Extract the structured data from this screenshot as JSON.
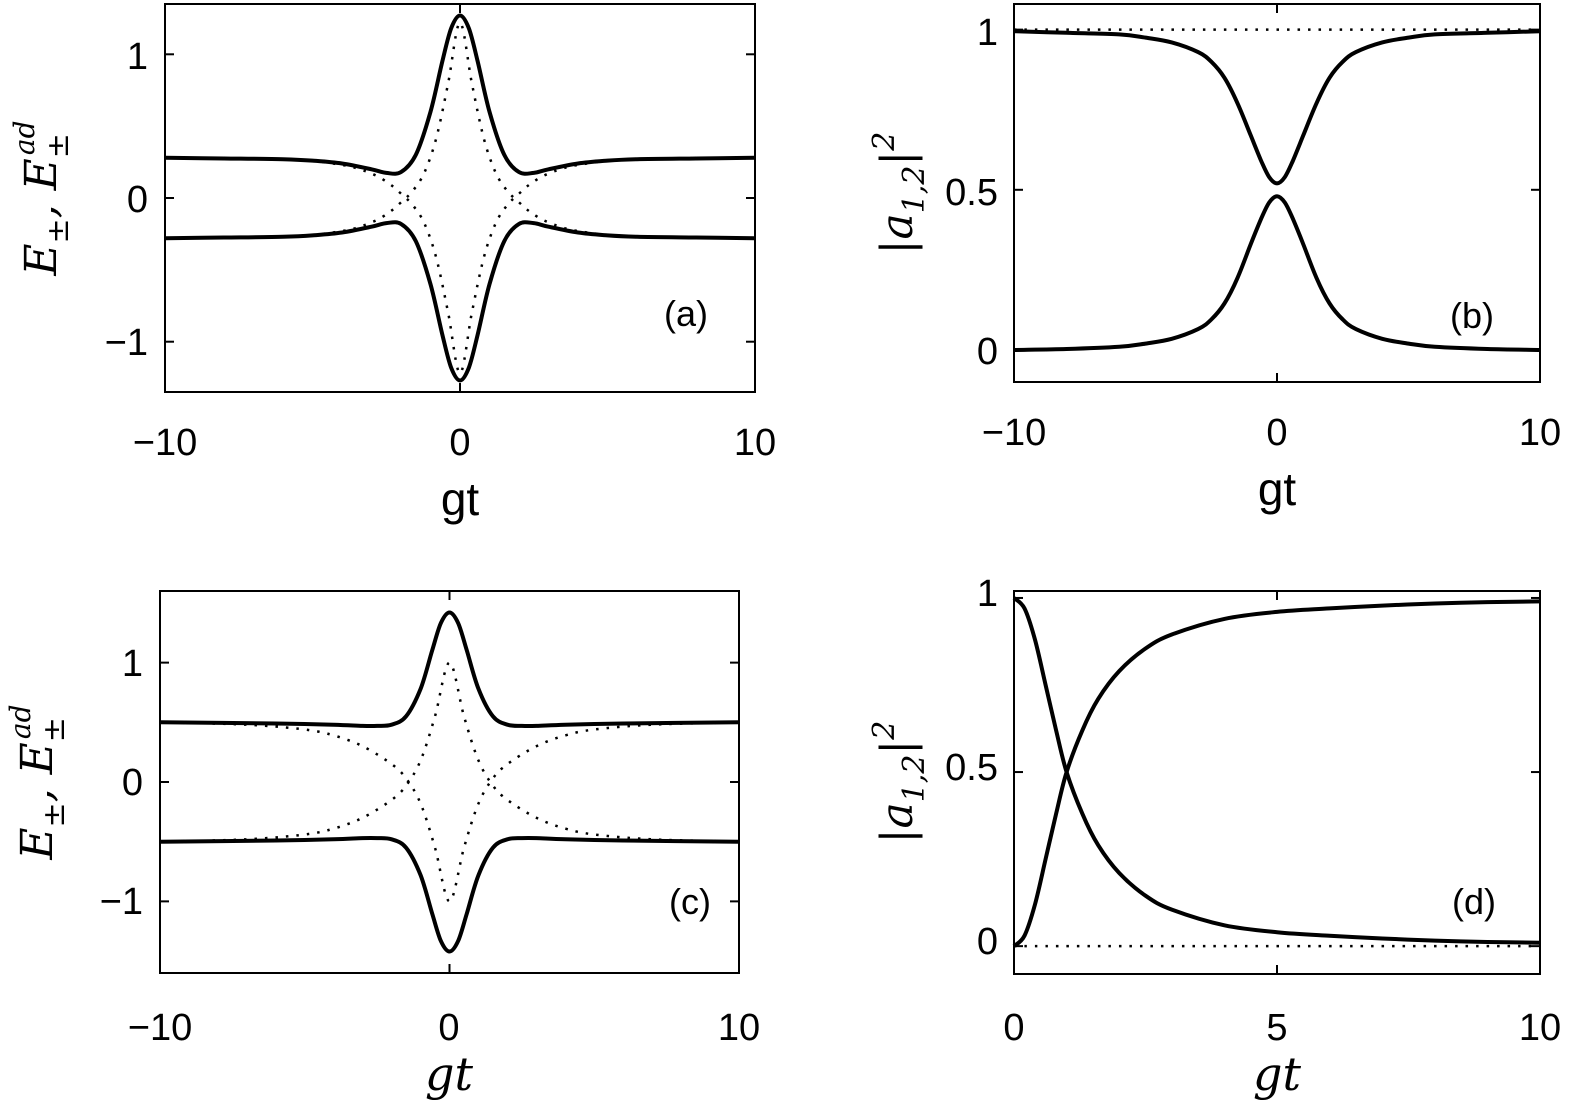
{
  "chart_data": [
    {
      "id": "a",
      "type": "line",
      "panel_label": "(a)",
      "xlabel": "gt",
      "ylabel": "E±, E±^ad",
      "xlim": [
        -10,
        10
      ],
      "ylim": [
        -1.35,
        1.35
      ],
      "xticks": [
        -10,
        0,
        10
      ],
      "yticks": [
        -1,
        0,
        1
      ],
      "xtick_labels": [
        "−10",
        "0",
        "10"
      ],
      "ytick_labels": [
        "−1",
        "0",
        "1"
      ],
      "x_range": [
        -10,
        10
      ],
      "series": [
        {
          "style": "solid",
          "x": [
            -10,
            -8,
            -6,
            -5,
            -4,
            -3,
            -2.5,
            -2,
            -1.5,
            -1,
            -0.6,
            -0.3,
            0,
            0.3,
            0.6,
            1,
            1.5,
            2,
            2.5,
            3,
            4,
            5,
            6,
            8,
            10
          ],
          "y": [
            0.28,
            0.275,
            0.27,
            0.26,
            0.24,
            0.2,
            0.175,
            0.18,
            0.3,
            0.6,
            0.95,
            1.18,
            1.27,
            1.18,
            0.95,
            0.6,
            0.3,
            0.18,
            0.175,
            0.2,
            0.24,
            0.26,
            0.27,
            0.275,
            0.28
          ]
        },
        {
          "style": "solid",
          "x": [
            -10,
            -8,
            -6,
            -5,
            -4,
            -3,
            -2.5,
            -2,
            -1.5,
            -1,
            -0.6,
            -0.3,
            0,
            0.3,
            0.6,
            1,
            1.5,
            2,
            2.5,
            3,
            4,
            5,
            6,
            8,
            10
          ],
          "y": [
            -0.28,
            -0.275,
            -0.27,
            -0.26,
            -0.24,
            -0.2,
            -0.175,
            -0.18,
            -0.3,
            -0.6,
            -0.95,
            -1.18,
            -1.27,
            -1.18,
            -0.95,
            -0.6,
            -0.3,
            -0.18,
            -0.175,
            -0.2,
            -0.24,
            -0.26,
            -0.27,
            -0.275,
            -0.28
          ]
        },
        {
          "style": "dotted",
          "x": [
            -10,
            -6,
            -4,
            -3,
            -2.4,
            -2,
            -1.6,
            -1.2,
            -0.8,
            -0.4,
            0,
            0.4,
            0.8,
            1.2,
            1.6,
            2,
            2.4,
            3,
            4,
            6,
            10
          ],
          "y": [
            0.28,
            0.27,
            0.23,
            0.17,
            0.1,
            0.03,
            -0.05,
            -0.18,
            -0.42,
            -0.8,
            -1.22,
            -0.8,
            -0.42,
            -0.18,
            -0.05,
            0.03,
            0.1,
            0.17,
            0.23,
            0.27,
            0.28
          ]
        },
        {
          "style": "dotted",
          "x": [
            -10,
            -6,
            -4,
            -3,
            -2.4,
            -2,
            -1.6,
            -1.2,
            -0.8,
            -0.4,
            0,
            0.4,
            0.8,
            1.2,
            1.6,
            2,
            2.4,
            3,
            4,
            6,
            10
          ],
          "y": [
            -0.28,
            -0.27,
            -0.23,
            -0.17,
            -0.1,
            -0.03,
            0.05,
            0.18,
            0.42,
            0.8,
            1.22,
            0.8,
            0.42,
            0.18,
            0.05,
            -0.03,
            -0.1,
            -0.17,
            -0.23,
            -0.27,
            -0.28
          ]
        }
      ]
    },
    {
      "id": "b",
      "type": "line",
      "panel_label": "(b)",
      "xlabel": "gt",
      "ylabel": "|a1,2|^2",
      "xlim": [
        -10,
        10
      ],
      "ylim": [
        -0.1,
        1.08
      ],
      "xticks": [
        -10,
        0,
        10
      ],
      "yticks": [
        0,
        0.5,
        1
      ],
      "xtick_labels": [
        "−10",
        "0",
        "10"
      ],
      "ytick_labels": [
        "0",
        "0.5",
        "1"
      ],
      "series": [
        {
          "style": "solid",
          "x": [
            -10,
            -8,
            -6,
            -5,
            -4,
            -3,
            -2.5,
            -2,
            -1.5,
            -1,
            -0.6,
            -0.3,
            0,
            0.3,
            0.6,
            1,
            1.5,
            2,
            2.5,
            3,
            4,
            5,
            6,
            8,
            10
          ],
          "y": [
            0.995,
            0.99,
            0.985,
            0.975,
            0.96,
            0.93,
            0.9,
            0.85,
            0.77,
            0.67,
            0.59,
            0.54,
            0.52,
            0.54,
            0.59,
            0.67,
            0.77,
            0.85,
            0.9,
            0.93,
            0.96,
            0.975,
            0.985,
            0.99,
            0.995
          ]
        },
        {
          "style": "solid",
          "x": [
            -10,
            -8,
            -6,
            -5,
            -4,
            -3,
            -2.5,
            -2,
            -1.5,
            -1,
            -0.6,
            -0.3,
            0,
            0.3,
            0.6,
            1,
            1.5,
            2,
            2.5,
            3,
            4,
            5,
            6,
            8,
            10
          ],
          "y": [
            0.0,
            0.003,
            0.01,
            0.02,
            0.035,
            0.065,
            0.095,
            0.145,
            0.225,
            0.33,
            0.41,
            0.46,
            0.48,
            0.46,
            0.41,
            0.33,
            0.225,
            0.145,
            0.095,
            0.065,
            0.035,
            0.02,
            0.01,
            0.003,
            0.0
          ]
        },
        {
          "style": "dotted",
          "x": [
            -10,
            10
          ],
          "y": [
            1.0,
            1.0
          ]
        }
      ]
    },
    {
      "id": "c",
      "type": "line",
      "panel_label": "(c)",
      "xlabel": "gt",
      "ylabel": "E±, E±^ad",
      "xlim": [
        -10,
        10
      ],
      "ylim": [
        -1.6,
        1.6
      ],
      "xticks": [
        -10,
        0,
        10
      ],
      "yticks": [
        -1,
        0,
        1
      ],
      "xtick_labels": [
        "−10",
        "0",
        "10"
      ],
      "ytick_labels": [
        "−1",
        "0",
        "1"
      ],
      "series": [
        {
          "style": "solid",
          "x": [
            -10,
            -6,
            -4,
            -3,
            -2.5,
            -2,
            -1.5,
            -1,
            -0.6,
            -0.3,
            0,
            0.3,
            0.6,
            1,
            1.5,
            2,
            2.5,
            3,
            4,
            6,
            10
          ],
          "y": [
            0.5,
            0.49,
            0.48,
            0.47,
            0.47,
            0.48,
            0.55,
            0.78,
            1.1,
            1.33,
            1.42,
            1.33,
            1.1,
            0.78,
            0.55,
            0.48,
            0.47,
            0.47,
            0.48,
            0.49,
            0.5
          ]
        },
        {
          "style": "solid",
          "x": [
            -10,
            -6,
            -4,
            -3,
            -2.5,
            -2,
            -1.5,
            -1,
            -0.6,
            -0.3,
            0,
            0.3,
            0.6,
            1,
            1.5,
            2,
            2.5,
            3,
            4,
            6,
            10
          ],
          "y": [
            -0.5,
            -0.49,
            -0.48,
            -0.47,
            -0.47,
            -0.48,
            -0.55,
            -0.78,
            -1.1,
            -1.33,
            -1.42,
            -1.33,
            -1.1,
            -0.78,
            -0.55,
            -0.48,
            -0.47,
            -0.47,
            -0.48,
            -0.49,
            -0.5
          ]
        },
        {
          "style": "dotted",
          "x": [
            -10,
            -7,
            -5,
            -4,
            -3,
            -2,
            -1.5,
            -1,
            -0.5,
            0,
            0.5,
            1,
            1.5,
            2,
            3,
            4,
            5,
            7,
            10
          ],
          "y": [
            0.5,
            0.48,
            0.44,
            0.39,
            0.3,
            0.15,
            0.03,
            -0.18,
            -0.55,
            -1.0,
            -0.55,
            -0.18,
            0.03,
            0.15,
            0.3,
            0.39,
            0.44,
            0.48,
            0.5
          ]
        },
        {
          "style": "dotted",
          "x": [
            -10,
            -7,
            -5,
            -4,
            -3,
            -2,
            -1.5,
            -1,
            -0.5,
            0,
            0.5,
            1,
            1.5,
            2,
            3,
            4,
            5,
            7,
            10
          ],
          "y": [
            -0.5,
            -0.48,
            -0.44,
            -0.39,
            -0.3,
            -0.15,
            -0.03,
            0.18,
            0.55,
            1.0,
            0.55,
            0.18,
            -0.03,
            -0.15,
            -0.3,
            -0.39,
            -0.44,
            -0.48,
            -0.5
          ]
        }
      ]
    },
    {
      "id": "d",
      "type": "line",
      "panel_label": "(d)",
      "xlabel": "gt",
      "ylabel": "|a1,2|^2",
      "xlim": [
        0,
        10
      ],
      "ylim": [
        -0.08,
        1.02
      ],
      "xticks": [
        0,
        5,
        10
      ],
      "yticks": [
        0,
        0.5,
        1
      ],
      "xtick_labels": [
        "0",
        "5",
        "10"
      ],
      "ytick_labels": [
        "0",
        "0.5",
        "1"
      ],
      "series": [
        {
          "style": "solid",
          "x": [
            0,
            0.2,
            0.4,
            0.6,
            0.8,
            1,
            1.3,
            1.6,
            2,
            2.5,
            3,
            4,
            5,
            6,
            7,
            8,
            9,
            10
          ],
          "y": [
            1.0,
            0.97,
            0.88,
            0.75,
            0.62,
            0.5,
            0.38,
            0.29,
            0.21,
            0.145,
            0.105,
            0.06,
            0.04,
            0.03,
            0.022,
            0.016,
            0.012,
            0.01
          ]
        },
        {
          "style": "solid",
          "x": [
            0,
            0.2,
            0.4,
            0.6,
            0.8,
            1,
            1.3,
            1.6,
            2,
            2.5,
            3,
            4,
            5,
            6,
            7,
            8,
            9,
            10
          ],
          "y": [
            0.0,
            0.03,
            0.12,
            0.25,
            0.38,
            0.5,
            0.62,
            0.71,
            0.79,
            0.855,
            0.895,
            0.94,
            0.96,
            0.97,
            0.978,
            0.984,
            0.988,
            0.99
          ]
        },
        {
          "style": "dotted",
          "x": [
            0,
            10
          ],
          "y": [
            0.0,
            0.0
          ]
        }
      ]
    }
  ]
}
